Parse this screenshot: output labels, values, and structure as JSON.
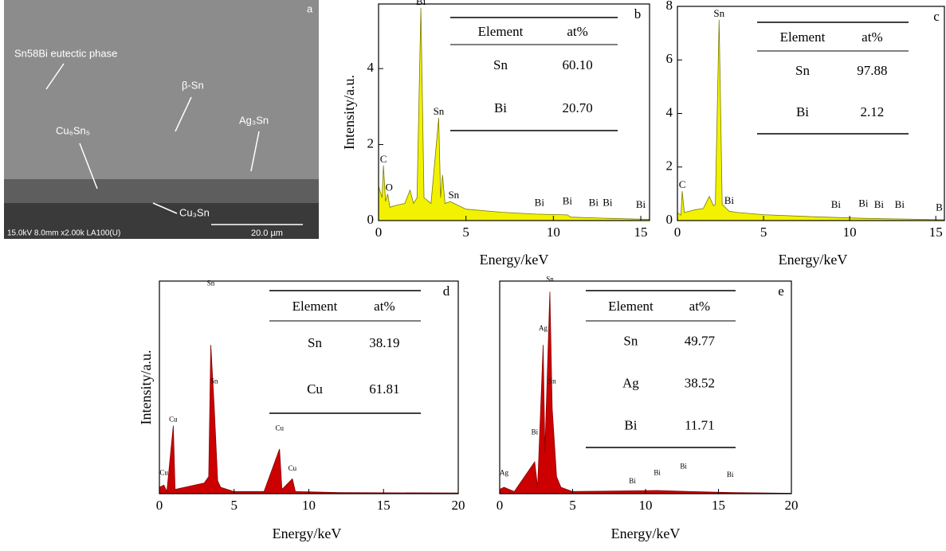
{
  "image": {
    "panel_label": "a",
    "labels": [
      "Sn58Bi eutectic phase",
      "β-Sn",
      "Ag₃Sn",
      "Cu₆Sn₅",
      "Cu₃Sn"
    ],
    "info": "15.0kV 8.0mm x2.00k LA100(U)",
    "scale": "20.0 µm"
  },
  "chart_data": [
    {
      "type": "area",
      "panel_label": "b",
      "xlabel": "Energy/keV",
      "ylabel": "Intensity/a.u.",
      "color": "#f2f200",
      "x": [
        0,
        0.2,
        0.28,
        0.4,
        0.52,
        0.65,
        1.0,
        1.5,
        1.8,
        2.0,
        2.2,
        2.42,
        2.6,
        3.0,
        3.44,
        3.55,
        3.66,
        3.8,
        4.1,
        5,
        7,
        9,
        10.8,
        11,
        13,
        15.5
      ],
      "values": [
        0.9,
        0.6,
        1.45,
        0.5,
        0.7,
        0.35,
        0.4,
        0.45,
        0.8,
        0.45,
        0.6,
        5.6,
        0.6,
        0.45,
        2.7,
        0.6,
        1.2,
        0.45,
        0.5,
        0.3,
        0.22,
        0.17,
        0.15,
        0.09,
        0.06,
        0.03
      ],
      "xlim": [
        0,
        15.5
      ],
      "ylim": [
        0,
        5.7
      ],
      "xticks": [
        0,
        5,
        10,
        15
      ],
      "yticks": [
        0,
        2,
        4
      ],
      "annotations": [
        {
          "text": "Bi",
          "x": 2.42,
          "y": 5.6
        },
        {
          "text": "C",
          "x": 0.28,
          "y": 1.45
        },
        {
          "text": "O",
          "x": 0.6,
          "y": 0.7
        },
        {
          "text": "Sn",
          "x": 3.44,
          "y": 2.7
        },
        {
          "text": "Sn",
          "x": 4.3,
          "y": 0.5
        },
        {
          "text": "Bi",
          "x": 9.2,
          "y": 0.3
        },
        {
          "text": "Bi",
          "x": 10.8,
          "y": 0.35
        },
        {
          "text": "Bi",
          "x": 12.3,
          "y": 0.3
        },
        {
          "text": "Bi",
          "x": 13.1,
          "y": 0.3
        },
        {
          "text": "Bi",
          "x": 15.0,
          "y": 0.25
        }
      ],
      "table": {
        "header": [
          "Element",
          "at%"
        ],
        "rows": [
          [
            "Sn",
            "60.10"
          ],
          [
            "Bi",
            "20.70"
          ]
        ]
      }
    },
    {
      "type": "area",
      "panel_label": "c",
      "xlabel": "Energy/keV",
      "color": "#f2f200",
      "x": [
        0,
        0.2,
        0.28,
        0.4,
        1.0,
        1.5,
        1.85,
        2.1,
        2.2,
        2.42,
        2.6,
        3.0,
        3.5,
        5,
        8,
        11,
        15.5
      ],
      "values": [
        0.3,
        0.2,
        1.1,
        0.3,
        0.4,
        0.45,
        0.9,
        0.55,
        0.6,
        7.5,
        0.6,
        0.35,
        0.3,
        0.22,
        0.14,
        0.08,
        0.03
      ],
      "xlim": [
        0,
        15.5
      ],
      "ylim": [
        0,
        8
      ],
      "xticks": [
        0,
        5,
        10,
        15
      ],
      "yticks": [
        0,
        2,
        4,
        6,
        8
      ],
      "annotations": [
        {
          "text": "Sn",
          "x": 2.42,
          "y": 7.5
        },
        {
          "text": "C",
          "x": 0.28,
          "y": 1.1
        },
        {
          "text": "Bi",
          "x": 3.0,
          "y": 0.5
        },
        {
          "text": "Bi",
          "x": 9.2,
          "y": 0.35
        },
        {
          "text": "Bi",
          "x": 10.8,
          "y": 0.4
        },
        {
          "text": "Bi",
          "x": 11.7,
          "y": 0.35
        },
        {
          "text": "Bi",
          "x": 12.9,
          "y": 0.35
        },
        {
          "text": "B",
          "x": 15.2,
          "y": 0.25
        }
      ],
      "table": {
        "header": [
          "Element",
          "at%"
        ],
        "rows": [
          [
            "Sn",
            "97.88"
          ],
          [
            "Bi",
            "2.12"
          ]
        ]
      }
    },
    {
      "type": "area",
      "panel_label": "d",
      "xlabel": "Energy/keV",
      "ylabel": "Intensity/a.u.",
      "color": "#cc0000",
      "x": [
        0,
        0.3,
        0.5,
        0.93,
        1.05,
        3.0,
        3.3,
        3.44,
        3.66,
        3.9,
        4.1,
        5,
        7,
        8.04,
        8.2,
        8.9,
        9.1,
        12,
        20
      ],
      "values": [
        3,
        4,
        1,
        32,
        2,
        5,
        8,
        70,
        42,
        6,
        3,
        1,
        1,
        21,
        2,
        7,
        1,
        0.5,
        0.3
      ],
      "xlim": [
        0,
        20
      ],
      "ylim": [
        0,
        100
      ],
      "xticks": [
        0,
        5,
        10,
        15,
        20
      ],
      "annotations": [
        {
          "text": "Sn",
          "x": 3.44,
          "y": 96
        },
        {
          "text": "Cu",
          "x": 0.93,
          "y": 32
        },
        {
          "text": "Sn",
          "x": 3.66,
          "y": 50
        },
        {
          "text": "Cu",
          "x": 8.04,
          "y": 28
        },
        {
          "text": "Cu",
          "x": 8.9,
          "y": 9
        },
        {
          "text": "Cu",
          "x": 0.3,
          "y": 7
        }
      ],
      "table": {
        "header": [
          "Element",
          "at%"
        ],
        "rows": [
          [
            "Sn",
            "38.19"
          ],
          [
            "Cu",
            "61.81"
          ]
        ]
      }
    },
    {
      "type": "area",
      "panel_label": "e",
      "xlabel": "Energy/keV",
      "color": "#cc0000",
      "x": [
        0,
        0.3,
        1,
        2.4,
        2.6,
        2.98,
        3.1,
        3.44,
        3.6,
        3.9,
        4.2,
        5,
        10.8,
        13,
        16,
        20
      ],
      "values": [
        2,
        3,
        1,
        15,
        3,
        70,
        20,
        95,
        40,
        8,
        3,
        1,
        1.5,
        1,
        0.5,
        0.2
      ],
      "xlim": [
        0,
        20
      ],
      "ylim": [
        0,
        100
      ],
      "xticks": [
        0,
        5,
        10,
        15,
        20
      ],
      "annotations": [
        {
          "text": "Sn",
          "x": 3.44,
          "y": 98
        },
        {
          "text": "Ag",
          "x": 2.98,
          "y": 75
        },
        {
          "text": "Sn",
          "x": 3.6,
          "y": 50
        },
        {
          "text": "Bi",
          "x": 2.4,
          "y": 26
        },
        {
          "text": "Ag",
          "x": 0.3,
          "y": 7
        },
        {
          "text": "Bi",
          "x": 9.1,
          "y": 3
        },
        {
          "text": "Bi",
          "x": 10.8,
          "y": 7
        },
        {
          "text": "Bi",
          "x": 12.6,
          "y": 10
        },
        {
          "text": "Bi",
          "x": 15.8,
          "y": 6
        }
      ],
      "table": {
        "header": [
          "Element",
          "at%"
        ],
        "rows": [
          [
            "Sn",
            "49.77"
          ],
          [
            "Ag",
            "38.52"
          ],
          [
            "Bi",
            "11.71"
          ]
        ]
      }
    }
  ]
}
